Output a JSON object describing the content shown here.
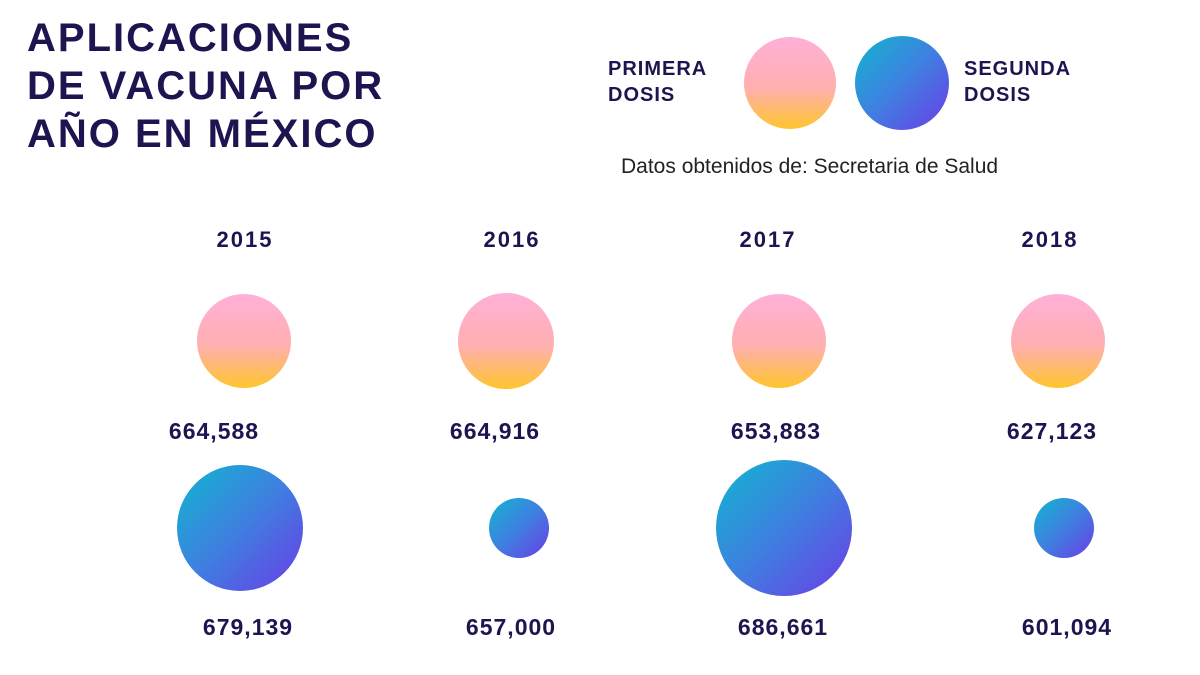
{
  "title_lines": [
    "APLICACIONES",
    "DE VACUNA POR",
    "AÑO EN MÉXICO"
  ],
  "legend": {
    "first_line1": "PRIMERA",
    "first_line2": "DOSIS",
    "second_line1": "SEGUNDA",
    "second_line2": "DOSIS"
  },
  "source": "Datos obtenidos de: Secretaria de Salud",
  "colors": {
    "text": "#1f1350",
    "first_top": "#ffb0d8",
    "first_bottom": "#ffc52c",
    "second_start": "#10b6d0",
    "second_end": "#6a3ce6"
  },
  "chart_data": {
    "type": "bubble",
    "title": "APLICACIONES DE VACUNA POR AÑO EN MÉXICO",
    "categories": [
      "2015",
      "2016",
      "2017",
      "2018"
    ],
    "series": [
      {
        "name": "PRIMERA DOSIS",
        "values": [
          664588,
          664916,
          653883,
          627123
        ],
        "labels": [
          "664,588",
          "664,916",
          "653,883",
          "627,123"
        ]
      },
      {
        "name": "SEGUNDA DOSIS",
        "values": [
          679139,
          657000,
          686661,
          601094
        ],
        "labels": [
          "679,139",
          "657,000",
          "686,661",
          "601,094"
        ]
      }
    ],
    "legend_position": "top-right"
  }
}
